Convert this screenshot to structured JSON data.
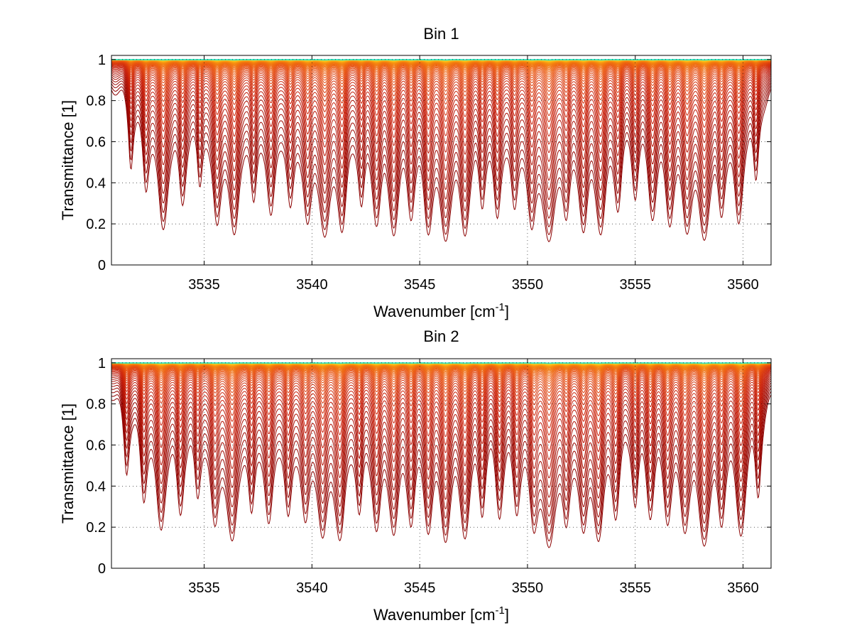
{
  "chart_data": [
    {
      "type": "line",
      "title": "Bin 1",
      "xlabel": "Wavenumber [cm",
      "xlabel_sup": "-1",
      "xlabel_end": "]",
      "ylabel": "Transmittance [1]",
      "xlim": [
        3530.7,
        3561.3
      ],
      "ylim": [
        0,
        1.02
      ],
      "xticks": [
        3535,
        3540,
        3545,
        3550,
        3555,
        3560
      ],
      "yticks": [
        0,
        0.2,
        0.4,
        0.6,
        0.8,
        1
      ],
      "ytick_labels": [
        "0",
        "0.2",
        "0.4",
        "0.6",
        "0.8",
        "1"
      ],
      "grid": "dotted",
      "series_count": 60,
      "colormap": [
        "#8b0000",
        "#c81e0a",
        "#e8500e",
        "#f5870f",
        "#ffd21c",
        "#36e3c0"
      ],
      "absorption_lines": [
        {
          "center": 3531.6,
          "depth": 0.55,
          "width": 0.12
        },
        {
          "center": 3532.3,
          "depth": 0.8,
          "width": 0.16
        },
        {
          "center": 3533.1,
          "depth": 1.6,
          "width": 0.22
        },
        {
          "center": 3534.0,
          "depth": 1.0,
          "width": 0.18
        },
        {
          "center": 3534.8,
          "depth": 0.7,
          "width": 0.14
        },
        {
          "center": 3535.6,
          "depth": 1.4,
          "width": 0.2
        },
        {
          "center": 3536.4,
          "depth": 1.7,
          "width": 0.22
        },
        {
          "center": 3537.3,
          "depth": 0.9,
          "width": 0.16
        },
        {
          "center": 3538.1,
          "depth": 1.2,
          "width": 0.2
        },
        {
          "center": 3539.0,
          "depth": 1.0,
          "width": 0.18
        },
        {
          "center": 3539.8,
          "depth": 1.3,
          "width": 0.2
        },
        {
          "center": 3540.6,
          "depth": 1.7,
          "width": 0.24
        },
        {
          "center": 3541.4,
          "depth": 1.5,
          "width": 0.2
        },
        {
          "center": 3542.3,
          "depth": 0.9,
          "width": 0.16
        },
        {
          "center": 3543.0,
          "depth": 1.3,
          "width": 0.2
        },
        {
          "center": 3543.8,
          "depth": 1.6,
          "width": 0.22
        },
        {
          "center": 3544.6,
          "depth": 1.1,
          "width": 0.18
        },
        {
          "center": 3545.4,
          "depth": 1.5,
          "width": 0.2
        },
        {
          "center": 3546.2,
          "depth": 1.8,
          "width": 0.24
        },
        {
          "center": 3547.1,
          "depth": 1.6,
          "width": 0.22
        },
        {
          "center": 3547.9,
          "depth": 0.9,
          "width": 0.16
        },
        {
          "center": 3548.6,
          "depth": 1.2,
          "width": 0.18
        },
        {
          "center": 3549.4,
          "depth": 1.0,
          "width": 0.18
        },
        {
          "center": 3550.2,
          "depth": 1.4,
          "width": 0.2
        },
        {
          "center": 3551.0,
          "depth": 1.9,
          "width": 0.26
        },
        {
          "center": 3551.8,
          "depth": 1.1,
          "width": 0.18
        },
        {
          "center": 3552.6,
          "depth": 1.5,
          "width": 0.2
        },
        {
          "center": 3553.4,
          "depth": 1.6,
          "width": 0.22
        },
        {
          "center": 3554.2,
          "depth": 1.0,
          "width": 0.18
        },
        {
          "center": 3555.0,
          "depth": 0.8,
          "width": 0.16
        },
        {
          "center": 3555.8,
          "depth": 1.2,
          "width": 0.2
        },
        {
          "center": 3556.6,
          "depth": 1.3,
          "width": 0.2
        },
        {
          "center": 3557.4,
          "depth": 1.5,
          "width": 0.22
        },
        {
          "center": 3558.2,
          "depth": 1.8,
          "width": 0.24
        },
        {
          "center": 3559.0,
          "depth": 1.1,
          "width": 0.18
        },
        {
          "center": 3559.8,
          "depth": 1.4,
          "width": 0.2
        },
        {
          "center": 3560.6,
          "depth": 0.7,
          "width": 0.14
        }
      ]
    },
    {
      "type": "line",
      "title": "Bin 2",
      "xlabel": "Wavenumber [cm",
      "xlabel_sup": "-1",
      "xlabel_end": "]",
      "ylabel": "Transmittance [1]",
      "xlim": [
        3530.7,
        3561.3
      ],
      "ylim": [
        0,
        1.02
      ],
      "xticks": [
        3535,
        3540,
        3545,
        3550,
        3555,
        3560
      ],
      "yticks": [
        0,
        0.2,
        0.4,
        0.6,
        0.8,
        1
      ],
      "ytick_labels": [
        "0",
        "0.2",
        "0.4",
        "0.6",
        "0.8",
        "1"
      ],
      "grid": "dotted",
      "series_count": 60,
      "colormap": [
        "#8b0000",
        "#c81e0a",
        "#e8500e",
        "#f5870f",
        "#ffd21c",
        "#36e3c0"
      ],
      "absorption_lines": [
        {
          "center": 3531.4,
          "depth": 0.6,
          "width": 0.14
        },
        {
          "center": 3532.2,
          "depth": 0.9,
          "width": 0.16
        },
        {
          "center": 3533.0,
          "depth": 1.5,
          "width": 0.22
        },
        {
          "center": 3533.9,
          "depth": 1.1,
          "width": 0.18
        },
        {
          "center": 3534.7,
          "depth": 0.8,
          "width": 0.16
        },
        {
          "center": 3535.5,
          "depth": 1.3,
          "width": 0.2
        },
        {
          "center": 3536.3,
          "depth": 1.8,
          "width": 0.24
        },
        {
          "center": 3537.2,
          "depth": 1.0,
          "width": 0.16
        },
        {
          "center": 3538.0,
          "depth": 1.3,
          "width": 0.2
        },
        {
          "center": 3538.9,
          "depth": 1.1,
          "width": 0.18
        },
        {
          "center": 3539.7,
          "depth": 1.2,
          "width": 0.2
        },
        {
          "center": 3540.5,
          "depth": 1.6,
          "width": 0.22
        },
        {
          "center": 3541.3,
          "depth": 1.7,
          "width": 0.22
        },
        {
          "center": 3542.2,
          "depth": 1.0,
          "width": 0.16
        },
        {
          "center": 3543.0,
          "depth": 1.4,
          "width": 0.2
        },
        {
          "center": 3543.8,
          "depth": 1.5,
          "width": 0.22
        },
        {
          "center": 3544.6,
          "depth": 1.2,
          "width": 0.18
        },
        {
          "center": 3545.4,
          "depth": 1.4,
          "width": 0.2
        },
        {
          "center": 3546.2,
          "depth": 1.7,
          "width": 0.22
        },
        {
          "center": 3547.1,
          "depth": 1.6,
          "width": 0.22
        },
        {
          "center": 3547.9,
          "depth": 1.0,
          "width": 0.16
        },
        {
          "center": 3548.7,
          "depth": 1.1,
          "width": 0.18
        },
        {
          "center": 3549.5,
          "depth": 1.0,
          "width": 0.18
        },
        {
          "center": 3550.3,
          "depth": 1.3,
          "width": 0.2
        },
        {
          "center": 3551.0,
          "depth": 2.0,
          "width": 0.26
        },
        {
          "center": 3551.8,
          "depth": 1.2,
          "width": 0.18
        },
        {
          "center": 3552.6,
          "depth": 1.4,
          "width": 0.2
        },
        {
          "center": 3553.3,
          "depth": 1.7,
          "width": 0.22
        },
        {
          "center": 3554.1,
          "depth": 1.1,
          "width": 0.18
        },
        {
          "center": 3555.0,
          "depth": 0.9,
          "width": 0.16
        },
        {
          "center": 3555.7,
          "depth": 1.1,
          "width": 0.18
        },
        {
          "center": 3556.5,
          "depth": 1.2,
          "width": 0.2
        },
        {
          "center": 3557.3,
          "depth": 1.4,
          "width": 0.22
        },
        {
          "center": 3558.2,
          "depth": 1.9,
          "width": 0.24
        },
        {
          "center": 3559.0,
          "depth": 1.2,
          "width": 0.18
        },
        {
          "center": 3559.9,
          "depth": 1.6,
          "width": 0.22
        },
        {
          "center": 3560.7,
          "depth": 0.8,
          "width": 0.14
        }
      ]
    }
  ]
}
